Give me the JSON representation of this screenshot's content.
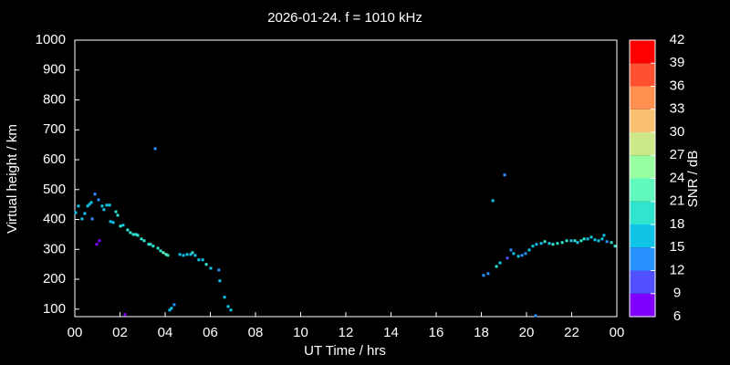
{
  "chart_data": {
    "type": "scatter",
    "title": "2026-01-24. f = 1010 kHz",
    "x_label": "UT Time / hrs",
    "y_label": "Virtual height / km",
    "colorbar_label": "SNR / dB",
    "xlim": [
      0,
      24
    ],
    "xticks": [
      {
        "value": 0,
        "label": "00"
      },
      {
        "value": 2,
        "label": "02"
      },
      {
        "value": 4,
        "label": "04"
      },
      {
        "value": 6,
        "label": "06"
      },
      {
        "value": 8,
        "label": "08"
      },
      10,
      12,
      14,
      16,
      18,
      20,
      22,
      {
        "value": 24,
        "label": "00"
      }
    ],
    "ylim": [
      75,
      1000
    ],
    "yticks": [
      100,
      200,
      300,
      400,
      500,
      600,
      700,
      800,
      900,
      1000
    ],
    "clim": [
      6,
      42
    ],
    "cticks": [
      6,
      9,
      12,
      15,
      18,
      21,
      24,
      27,
      30,
      33,
      36,
      39,
      42
    ],
    "colors": [
      "#8000ff",
      "#5050ff",
      "#2890ff",
      "#10c4e8",
      "#30e4d0",
      "#60fabe",
      "#98ffa0",
      "#cce888",
      "#f8c070",
      "#ff9050",
      "#ff5030",
      "#ff0000"
    ],
    "x": [
      0.04,
      0.16,
      0.32,
      0.44,
      0.57,
      0.65,
      0.73,
      0.77,
      0.89,
      0.97,
      1.05,
      1.09,
      1.21,
      1.29,
      1.41,
      1.54,
      1.58,
      1.7,
      1.82,
      1.9,
      2.02,
      2.14,
      2.22,
      2.34,
      2.46,
      2.59,
      2.71,
      2.79,
      2.95,
      3.07,
      3.27,
      3.35,
      3.47,
      3.56,
      3.68,
      3.8,
      3.92,
      4.04,
      4.12,
      4.2,
      4.28,
      4.4,
      4.65,
      4.81,
      4.97,
      5.13,
      5.21,
      5.33,
      5.49,
      5.66,
      5.82,
      6.02,
      6.38,
      6.42,
      6.63,
      6.79,
      6.91,
      18.1,
      18.3,
      18.51,
      18.67,
      18.83,
      19.03,
      19.15,
      19.31,
      19.43,
      19.64,
      19.8,
      19.96,
      20.12,
      20.28,
      20.4,
      20.44,
      20.65,
      20.81,
      21.01,
      21.17,
      21.37,
      21.58,
      21.78,
      21.98,
      22.14,
      22.26,
      22.42,
      22.55,
      22.71,
      22.87,
      23.03,
      23.19,
      23.35,
      23.43,
      23.56,
      23.76,
      23.92
    ],
    "values": [
      423,
      445,
      402,
      420,
      445,
      451,
      457,
      402,
      485,
      317,
      466,
      329,
      445,
      433,
      448,
      448,
      393,
      390,
      426,
      414,
      378,
      381,
      82,
      365,
      356,
      350,
      350,
      347,
      335,
      329,
      317,
      317,
      311,
      637,
      304,
      295,
      289,
      283,
      280,
      97,
      103,
      115,
      283,
      280,
      283,
      283,
      289,
      280,
      265,
      265,
      250,
      237,
      231,
      195,
      140,
      109,
      97,
      213,
      219,
      463,
      243,
      255,
      549,
      271,
      298,
      286,
      277,
      280,
      286,
      298,
      311,
      78,
      317,
      320,
      326,
      320,
      317,
      320,
      323,
      329,
      329,
      329,
      323,
      329,
      335,
      335,
      341,
      332,
      329,
      335,
      347,
      326,
      323,
      311
    ],
    "snr": [
      16,
      17,
      16,
      17,
      17,
      16,
      17,
      13,
      13,
      8,
      13,
      8,
      16,
      17,
      17,
      16,
      16,
      17,
      19,
      20,
      19,
      17,
      8,
      19,
      19,
      18,
      19,
      19,
      20,
      20,
      18,
      19,
      20,
      13,
      20,
      20,
      22,
      21,
      18,
      16,
      16,
      13,
      17,
      16,
      17,
      16,
      18,
      17,
      16,
      16,
      18,
      16,
      13,
      16,
      16,
      16,
      16,
      13,
      13,
      16,
      18,
      17,
      13,
      10,
      13,
      17,
      17,
      13,
      13,
      16,
      17,
      13,
      16,
      17,
      19,
      17,
      20,
      20,
      19,
      20,
      17,
      19,
      17,
      19,
      18,
      17,
      16,
      16,
      16,
      17,
      16,
      13,
      18,
      19
    ]
  }
}
